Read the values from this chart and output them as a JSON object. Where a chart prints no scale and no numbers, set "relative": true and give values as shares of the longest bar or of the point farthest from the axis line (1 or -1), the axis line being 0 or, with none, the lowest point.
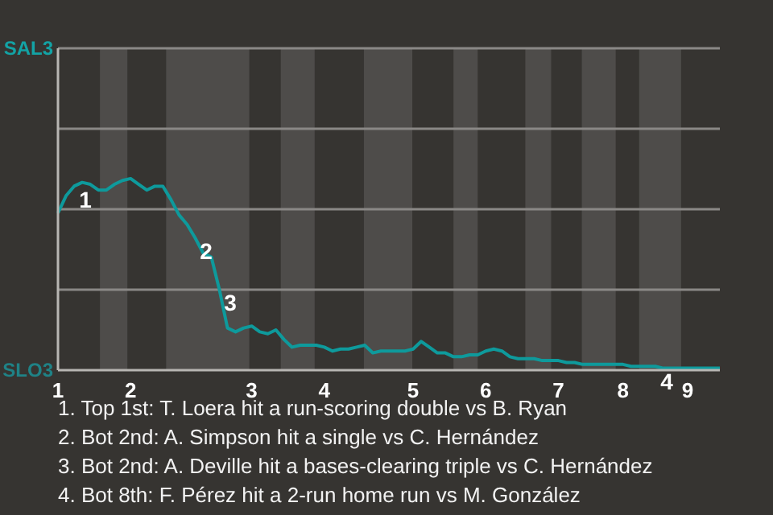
{
  "chart_data": {
    "type": "line",
    "relative": true,
    "categories": [
      "1",
      null,
      null,
      null,
      null,
      null,
      null,
      null,
      null,
      "2",
      null,
      null,
      null,
      null,
      null,
      null,
      null,
      null,
      null,
      null,
      null,
      null,
      null,
      null,
      "3",
      null,
      null,
      null,
      null,
      null,
      null,
      null,
      null,
      "4",
      null,
      null,
      null,
      null,
      null,
      null,
      null,
      null,
      null,
      null,
      "5",
      null,
      null,
      null,
      null,
      null,
      null,
      null,
      null,
      "6",
      null,
      null,
      null,
      null,
      null,
      null,
      null,
      null,
      "7",
      null,
      null,
      null,
      null,
      null,
      null,
      null,
      "8",
      null,
      null,
      null,
      null,
      null,
      null,
      null,
      "9",
      null,
      null,
      null,
      null
    ],
    "series": [
      {
        "color": "#0e9a9c",
        "values": [
          0.82,
          0.91,
          0.96,
          0.98,
          0.97,
          0.94,
          0.94,
          0.97,
          0.99,
          1,
          0.97,
          0.94,
          0.96,
          0.96,
          0.89,
          0.81,
          0.76,
          0.69,
          0.61,
          0.59,
          0.42,
          0.22,
          0.2,
          0.22,
          0.23,
          0.2,
          0.19,
          0.21,
          0.16,
          0.12,
          0.13,
          0.13,
          0.13,
          0.12,
          0.1,
          0.11,
          0.11,
          0.12,
          0.13,
          0.09,
          0.1,
          0.1,
          0.1,
          0.1,
          0.11,
          0.15,
          0.12,
          0.09,
          0.09,
          0.07,
          0.07,
          0.08,
          0.08,
          0.1,
          0.11,
          0.1,
          0.07,
          0.06,
          0.06,
          0.06,
          0.05,
          0.05,
          0.05,
          0.04,
          0.04,
          0.03,
          0.03,
          0.03,
          0.03,
          0.03,
          0.03,
          0.02,
          0.02,
          0.02,
          0.02,
          0.01,
          0.01,
          0.01,
          0.01,
          0.01,
          0.01,
          0.01,
          0.01
        ]
      }
    ],
    "ref_lines": [
      {
        "axis": "y",
        "value": 0.42,
        "color": "#8a8886"
      },
      {
        "axis": "y",
        "value": 0.84,
        "color": "#8a8886"
      },
      {
        "axis": "y",
        "value": 1.26,
        "color": "#8a8886"
      }
    ],
    "annotations": [
      "SAL3",
      "SLO3",
      "1",
      "2",
      "3",
      "4",
      "1. Top 1st: T. Loera hit a run-scoring double vs B. Ryan",
      "2. Bot 2nd: A. Simpson hit a single vs C. Hernández",
      "3. Bot 2nd: A. Deville hit a bases-clearing triple vs C. Hernández",
      "4. Bot 8th: F. Pérez hit a 2-run home run vs M. González"
    ]
  }
}
